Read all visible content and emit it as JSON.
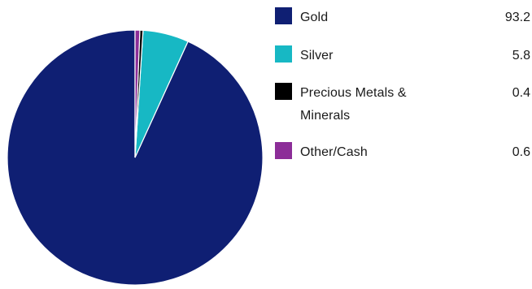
{
  "chart_data": {
    "type": "pie",
    "title": "",
    "categories": [
      "Gold",
      "Silver",
      "Precious Metals & Minerals",
      "Other/Cash"
    ],
    "values": [
      93.2,
      5.8,
      0.4,
      0.6
    ],
    "colors": [
      "#0f1f73",
      "#17b8c4",
      "#000000",
      "#8c2d98"
    ],
    "legend_position": "right",
    "start_angle": "12 o'clock",
    "direction": "counterclockwise"
  },
  "legend": {
    "items": [
      {
        "label": "Gold",
        "value": "93.2",
        "color": "#0f1f73"
      },
      {
        "label": "Silver",
        "value": "5.8",
        "color": "#17b8c4"
      },
      {
        "label": "Precious Metals &",
        "label_line2": "Minerals",
        "value": "0.4",
        "color": "#000000"
      },
      {
        "label": "Other/Cash",
        "value": "0.6",
        "color": "#8c2d98"
      }
    ]
  }
}
